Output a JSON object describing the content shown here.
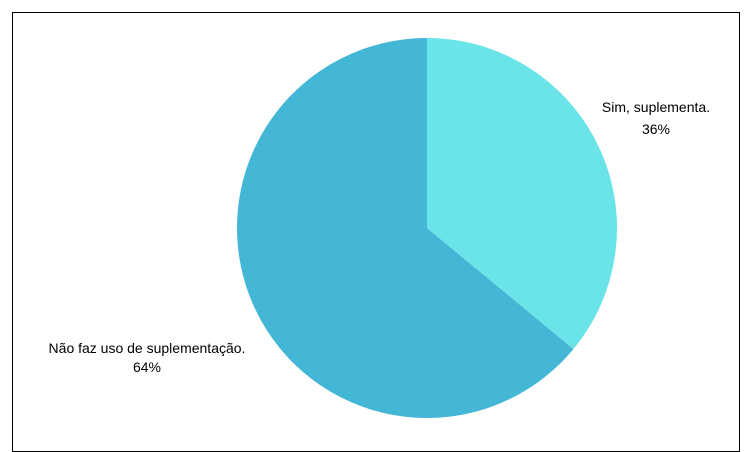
{
  "chart_data": {
    "type": "pie",
    "title": "",
    "slices": [
      {
        "label": "Sim, suplementa.",
        "value": 36,
        "percent_label": "36%",
        "color": "#6ae4e8"
      },
      {
        "label": "Não faz uso de suplementação.",
        "value": 64,
        "percent_label": "64%",
        "color": "#44b7d6"
      }
    ],
    "start": "12 o'clock",
    "direction": "clockwise",
    "legend": "none",
    "labels": "outside"
  }
}
